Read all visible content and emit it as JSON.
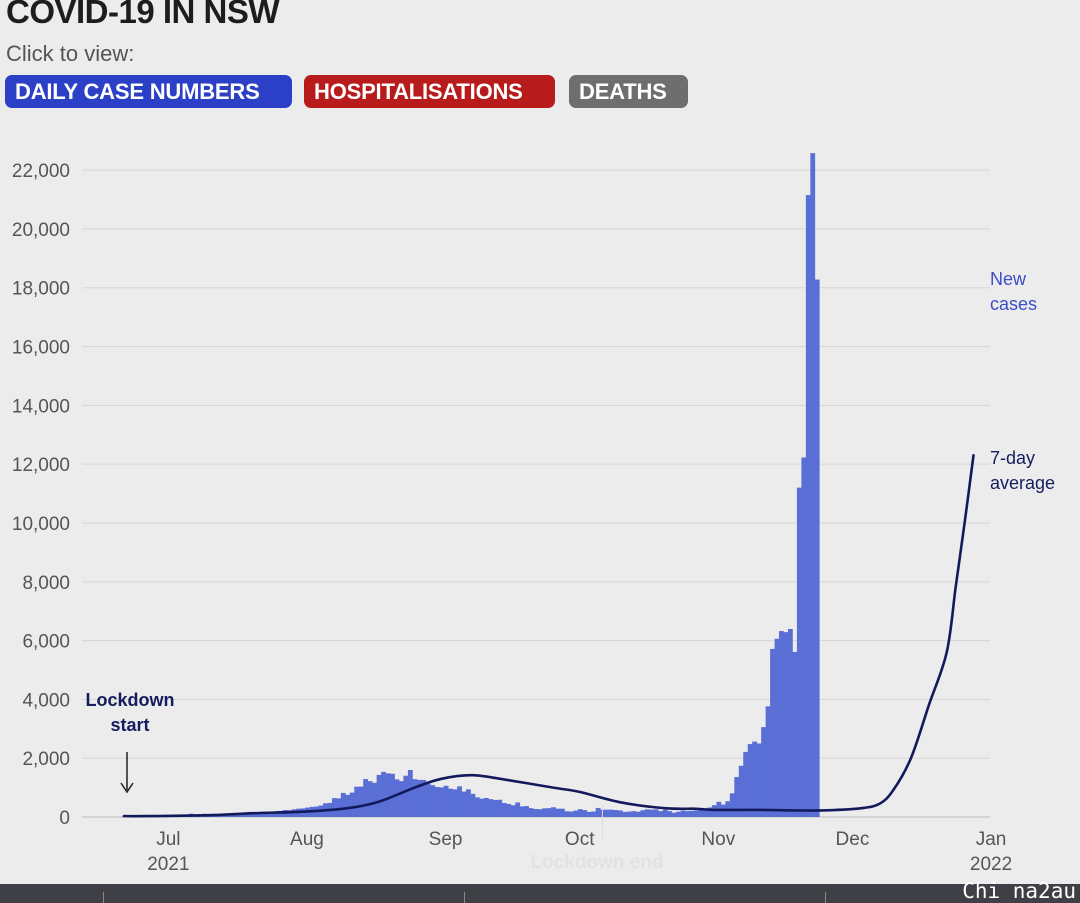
{
  "header": {
    "title": "COVID-19 IN NSW",
    "prompt": "Click to view:"
  },
  "tabs": [
    {
      "label": "DAILY CASE NUMBERS",
      "color": "#2b3fc7"
    },
    {
      "label": "HOSPITALISATIONS",
      "color": "#b71b1b"
    },
    {
      "label": "DEATHS",
      "color": "#6e6e6e"
    }
  ],
  "colors": {
    "bars": "#5a6fd6",
    "average_line": "#131a5c",
    "label_text": "#3a4ec9",
    "annotation_text": "#151d5f",
    "grid": "#d6d6d6",
    "axis_text": "#555555"
  },
  "watermark": "Chi na2au",
  "chart_data": {
    "type": "bar",
    "x_range": [
      "2021-06-26",
      "2022-01-03"
    ],
    "ylim": [
      0,
      23500
    ],
    "yticks": [
      0,
      2000,
      4000,
      6000,
      8000,
      10000,
      12000,
      14000,
      16000,
      18000,
      20000,
      22000
    ],
    "ytick_labels": [
      "0",
      "2,000",
      "4,000",
      "6,000",
      "8,000",
      "10,000",
      "12,000",
      "14,000",
      "16,000",
      "18,000",
      "20,000",
      "22,000"
    ],
    "xticks": [
      {
        "label": "Jul",
        "sublabel": "2021",
        "date": "2021-07-01"
      },
      {
        "label": "Aug",
        "sublabel": "",
        "date": "2021-08-01"
      },
      {
        "label": "Sep",
        "sublabel": "",
        "date": "2021-09-01"
      },
      {
        "label": "Oct",
        "sublabel": "",
        "date": "2021-10-01"
      },
      {
        "label": "Nov",
        "sublabel": "",
        "date": "2021-11-01"
      },
      {
        "label": "Dec",
        "sublabel": "",
        "date": "2021-12-01"
      },
      {
        "label": "Jan",
        "sublabel": "2022",
        "date": "2022-01-01"
      }
    ],
    "grid": true,
    "series": [
      {
        "name": "New cases",
        "type": "bar",
        "start_date": "2021-06-26",
        "values": [
          17,
          29,
          35,
          22,
          24,
          31,
          35,
          16,
          35,
          27,
          18,
          38,
          44,
          50,
          77,
          112,
          89,
          97,
          111,
          65,
          105,
          78,
          98,
          110,
          111,
          124,
          136,
          141,
          172,
          145,
          163,
          177,
          170,
          170,
          199,
          207,
          239,
          233,
          262,
          283,
          291,
          319,
          345,
          356,
          390,
          466,
          478,
          642,
          633,
          818,
          753,
          830,
          1029,
          1035,
          1290,
          1218,
          1164,
          1431,
          1533,
          1485,
          1470,
          1281,
          1220,
          1405,
          1599,
          1288,
          1262,
          1259,
          1127,
          1083,
          1021,
          1007,
          1063,
          961,
          938,
          1043,
          864,
          941,
          787,
          667,
          623,
          646,
          608,
          580,
          587,
          477,
          444,
          399,
          496,
          360,
          372,
          301,
          273,
          265,
          294,
          301,
          332,
          283,
          283,
          196,
          187,
          217,
          268,
          235,
          173,
          187,
          308,
          248,
          250,
          250,
          236,
          222,
          173,
          185,
          200,
          180,
          230,
          261,
          250,
          261,
          201,
          246,
          200,
          147,
          180,
          216,
          200,
          209,
          220,
          239,
          271,
          325,
          403,
          516,
          420,
          536,
          804,
          1360,
          1742,
          2213,
          2482,
          2566,
          2501,
          3057,
          3763,
          5715,
          6062,
          6324,
          6288,
          6394,
          5613,
          11201,
          12226,
          21151,
          22577,
          18278
        ]
      },
      {
        "name": "7-day average",
        "type": "line",
        "points": [
          [
            "2021-06-26",
            30
          ],
          [
            "2021-07-01",
            30
          ],
          [
            "2021-07-15",
            60
          ],
          [
            "2021-07-25",
            130
          ],
          [
            "2021-08-05",
            180
          ],
          [
            "2021-08-15",
            300
          ],
          [
            "2021-08-22",
            520
          ],
          [
            "2021-08-30",
            1000
          ],
          [
            "2021-09-05",
            1300
          ],
          [
            "2021-09-12",
            1420
          ],
          [
            "2021-09-20",
            1250
          ],
          [
            "2021-09-30",
            1000
          ],
          [
            "2021-10-06",
            850
          ],
          [
            "2021-10-15",
            500
          ],
          [
            "2021-10-25",
            300
          ],
          [
            "2021-11-01",
            280
          ],
          [
            "2021-11-05",
            240
          ],
          [
            "2021-11-15",
            240
          ],
          [
            "2021-11-25",
            220
          ],
          [
            "2021-12-01",
            230
          ],
          [
            "2021-12-08",
            300
          ],
          [
            "2021-12-12",
            450
          ],
          [
            "2021-12-15",
            900
          ],
          [
            "2021-12-19",
            2000
          ],
          [
            "2021-12-23",
            3800
          ],
          [
            "2021-12-27",
            5600
          ],
          [
            "2021-12-29",
            7800
          ],
          [
            "2021-12-31",
            10000
          ],
          [
            "2022-01-02",
            12300
          ]
        ]
      }
    ],
    "series_labels": [
      {
        "series": "New cases",
        "lines": [
          "New",
          "cases"
        ]
      },
      {
        "series": "7-day average",
        "lines": [
          "7-day",
          "average"
        ]
      }
    ],
    "annotations": [
      {
        "lines": [
          "Lockdown",
          "start"
        ],
        "date": "2021-06-26",
        "arrow": true
      },
      {
        "text": "Lockdown end",
        "date": "2021-10-11",
        "faded": true
      }
    ]
  }
}
